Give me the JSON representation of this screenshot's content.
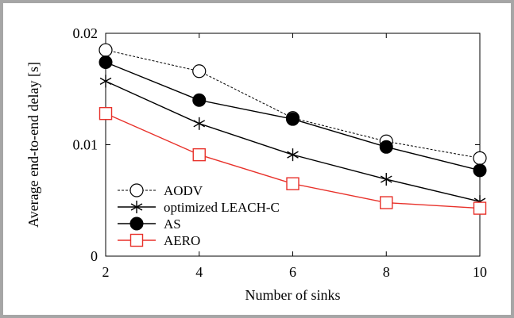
{
  "chart_data": {
    "type": "line",
    "title": "",
    "xlabel": "Number of sinks",
    "ylabel": "Average end-to-end delay [s]",
    "x": [
      2,
      4,
      6,
      8,
      10
    ],
    "xlim": [
      2,
      10
    ],
    "ylim": [
      0,
      0.02
    ],
    "xticks": [
      "2",
      "4",
      "6",
      "8",
      "10"
    ],
    "yticks": [
      "0",
      "0.01",
      "0.02"
    ],
    "grid": false,
    "legend_position": "bottom-left",
    "series": [
      {
        "name": "AODV",
        "values": [
          0.0185,
          0.0166,
          0.0124,
          0.0103,
          0.0088
        ],
        "color": "#000000",
        "marker": "open-circle",
        "dashed": true
      },
      {
        "name": "optimized LEACH-C",
        "values": [
          0.0157,
          0.0119,
          0.0091,
          0.0069,
          0.0049
        ],
        "color": "#000000",
        "marker": "asterisk",
        "dashed": false
      },
      {
        "name": "AS",
        "values": [
          0.0174,
          0.014,
          0.0123,
          0.0098,
          0.0077
        ],
        "color": "#000000",
        "marker": "filled-circle",
        "dashed": false
      },
      {
        "name": "AERO",
        "values": [
          0.0128,
          0.0091,
          0.0065,
          0.0048,
          0.0043
        ],
        "color": "#e8312a",
        "marker": "open-square",
        "dashed": false
      }
    ]
  }
}
